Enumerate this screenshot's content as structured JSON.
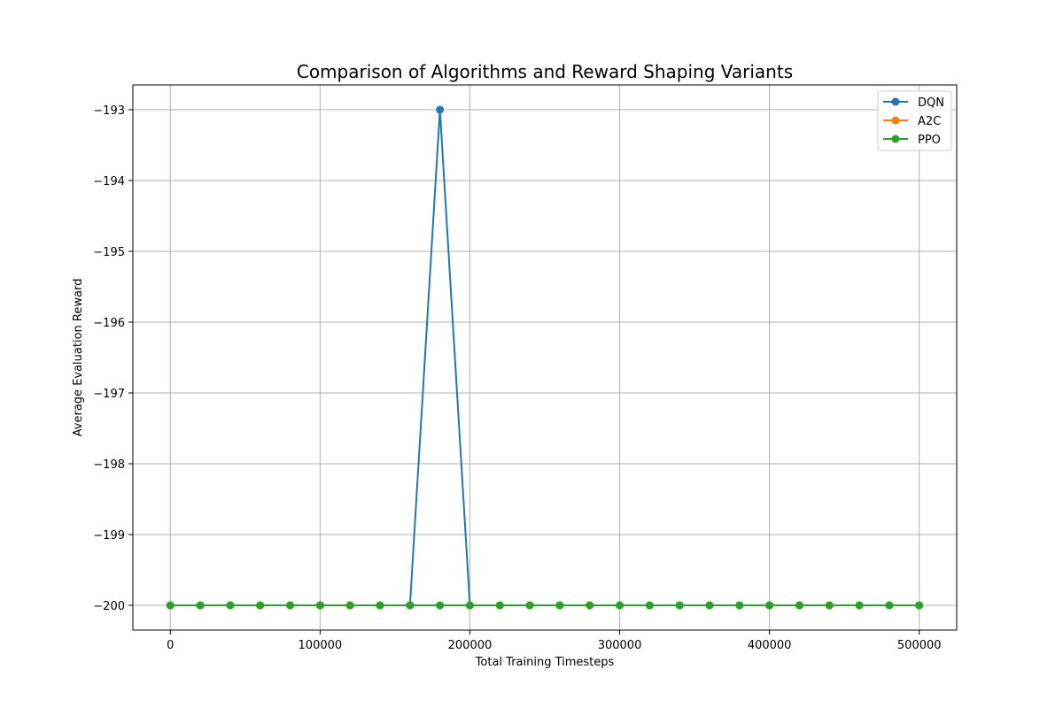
{
  "chart_data": {
    "type": "line",
    "title": "Comparison of Algorithms and Reward Shaping Variants",
    "xlabel": "Total Training Timesteps",
    "ylabel": "Average Evaluation Reward",
    "xlim": [
      -25000,
      525000
    ],
    "ylim": [
      -200.35,
      -192.65
    ],
    "xticks": [
      0,
      100000,
      200000,
      300000,
      400000,
      500000
    ],
    "yticks": [
      -200,
      -199,
      -198,
      -197,
      -196,
      -195,
      -194,
      -193
    ],
    "xtick_labels": [
      "0",
      "100000",
      "200000",
      "300000",
      "400000",
      "500000"
    ],
    "ytick_labels": [
      "−200",
      "−199",
      "−198",
      "−197",
      "−196",
      "−195",
      "−194",
      "−193"
    ],
    "grid": true,
    "legend_position": "top-right",
    "x": [
      0,
      20000,
      40000,
      60000,
      80000,
      100000,
      120000,
      140000,
      160000,
      180000,
      200000,
      220000,
      240000,
      260000,
      280000,
      300000,
      320000,
      340000,
      360000,
      380000,
      400000,
      420000,
      440000,
      460000,
      480000,
      500000
    ],
    "series": [
      {
        "name": "DQN",
        "color": "#1f77b4",
        "values": [
          -200,
          -200,
          -200,
          -200,
          -200,
          -200,
          -200,
          -200,
          -200,
          -193,
          -200,
          -200,
          -200,
          -200,
          -200,
          -200,
          -200,
          -200,
          -200,
          -200,
          -200,
          -200,
          -200,
          -200,
          -200,
          -200
        ]
      },
      {
        "name": "A2C",
        "color": "#ff7f0e",
        "values": [
          -200,
          -200,
          -200,
          -200,
          -200,
          -200,
          -200,
          -200,
          -200,
          -200,
          -200,
          -200,
          -200,
          -200,
          -200,
          -200,
          -200,
          -200,
          -200,
          -200,
          -200,
          -200,
          -200,
          -200,
          -200,
          -200
        ]
      },
      {
        "name": "PPO",
        "color": "#2ca02c",
        "values": [
          -200,
          -200,
          -200,
          -200,
          -200,
          -200,
          -200,
          -200,
          -200,
          -200,
          -200,
          -200,
          -200,
          -200,
          -200,
          -200,
          -200,
          -200,
          -200,
          -200,
          -200,
          -200,
          -200,
          -200,
          -200,
          -200
        ]
      }
    ]
  }
}
